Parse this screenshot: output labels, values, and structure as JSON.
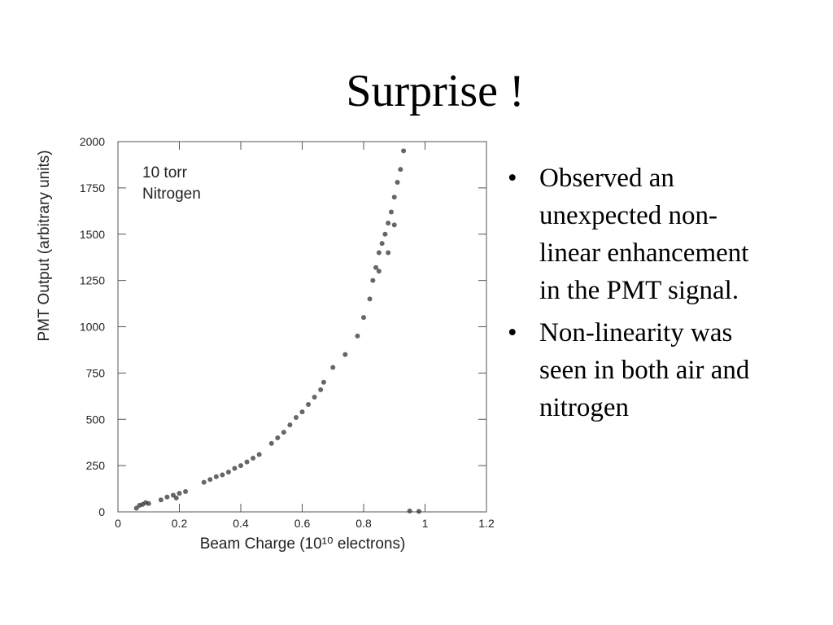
{
  "title": "Surprise !",
  "bullets": [
    "Observed an unexpected non-linear enhancement in the PMT signal.",
    "Non-linearity was seen in both air and nitrogen"
  ],
  "chart_data": {
    "type": "scatter",
    "annotation": [
      "10 torr",
      "Nitrogen"
    ],
    "x_label": "Beam Charge (10¹⁰ electrons)",
    "y_label": "PMT Output (arbitrary units)",
    "color": "#333333",
    "x": [
      0.06,
      0.07,
      0.08,
      0.09,
      0.1,
      0.14,
      0.16,
      0.18,
      0.2,
      0.22,
      0.19,
      0.28,
      0.3,
      0.32,
      0.34,
      0.36,
      0.38,
      0.4,
      0.42,
      0.44,
      0.46,
      0.5,
      0.52,
      0.54,
      0.56,
      0.58,
      0.6,
      0.62,
      0.64,
      0.66,
      0.67,
      0.7,
      0.74,
      0.78,
      0.8,
      0.82,
      0.83,
      0.84,
      0.85,
      0.86,
      0.87,
      0.88,
      0.89,
      0.9,
      0.91,
      0.92,
      0.93,
      0.88,
      0.85,
      0.9,
      0.95,
      0.98
    ],
    "values": [
      20,
      35,
      40,
      50,
      45,
      65,
      80,
      90,
      100,
      110,
      75,
      160,
      175,
      190,
      200,
      215,
      235,
      250,
      270,
      290,
      310,
      370,
      400,
      430,
      470,
      510,
      540,
      580,
      620,
      660,
      700,
      780,
      850,
      950,
      1050,
      1150,
      1250,
      1320,
      1400,
      1450,
      1500,
      1560,
      1620,
      1700,
      1780,
      1850,
      1950,
      1400,
      1300,
      1550,
      5,
      3
    ],
    "xlim": [
      0,
      1.2
    ],
    "xticks": [
      0,
      0.2,
      0.4,
      0.6,
      0.8,
      1,
      1.2
    ],
    "ylim": [
      0,
      2000
    ],
    "yticks": [
      0,
      250,
      500,
      750,
      1000,
      1250,
      1500,
      1750,
      2000
    ]
  }
}
